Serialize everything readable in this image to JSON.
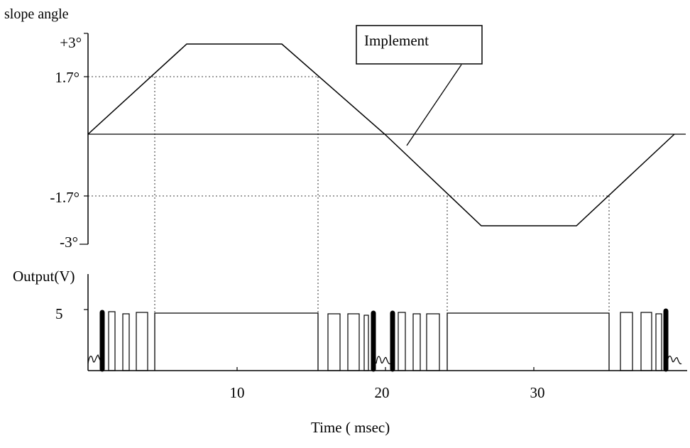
{
  "top_chart": {
    "ylabel": "slope angle",
    "yticks": [
      {
        "value": 3,
        "label": "+3°"
      },
      {
        "value": 1.7,
        "label": "1.7°"
      },
      {
        "value": -1.7,
        "label": "-1.7°"
      },
      {
        "value": -3,
        "label": "-3°"
      }
    ],
    "callout": "Implement"
  },
  "bottom_chart": {
    "ylabel": "Output(V)",
    "ytick_label": "5",
    "xlabel": "Time ( msec)",
    "xticks": [
      {
        "value": 10,
        "label": "10"
      },
      {
        "value": 20,
        "label": "20"
      },
      {
        "value": 30,
        "label": "30"
      }
    ]
  },
  "chart_data": [
    {
      "type": "line",
      "ylabel": "slope angle",
      "xlim": [
        0,
        39.5
      ],
      "ylim": [
        -3,
        3
      ],
      "x": [
        0,
        6.5,
        12.8,
        19.7,
        26.3,
        32.5,
        39.3
      ],
      "y": [
        0,
        3,
        3,
        0,
        -3,
        -3,
        0
      ],
      "reference_levels": [
        1.7,
        -1.7
      ],
      "crossings_x": [
        4.5,
        15.2,
        24.1,
        34.8
      ],
      "annotation": "Implement"
    },
    {
      "type": "line",
      "ylabel": "Output(V)",
      "xlabel": "Time ( msec)",
      "xlim": [
        0,
        39.5
      ],
      "ylim": [
        0,
        5
      ],
      "xticks": [
        10,
        20,
        30
      ],
      "high_level": 5,
      "continuous_high_intervals": [
        [
          4.5,
          15.2
        ],
        [
          24.1,
          34.8
        ]
      ],
      "pulse_regions": [
        [
          0.4,
          4.5
        ],
        [
          15.2,
          24.1
        ],
        [
          34.8,
          39.3
        ]
      ]
    }
  ]
}
